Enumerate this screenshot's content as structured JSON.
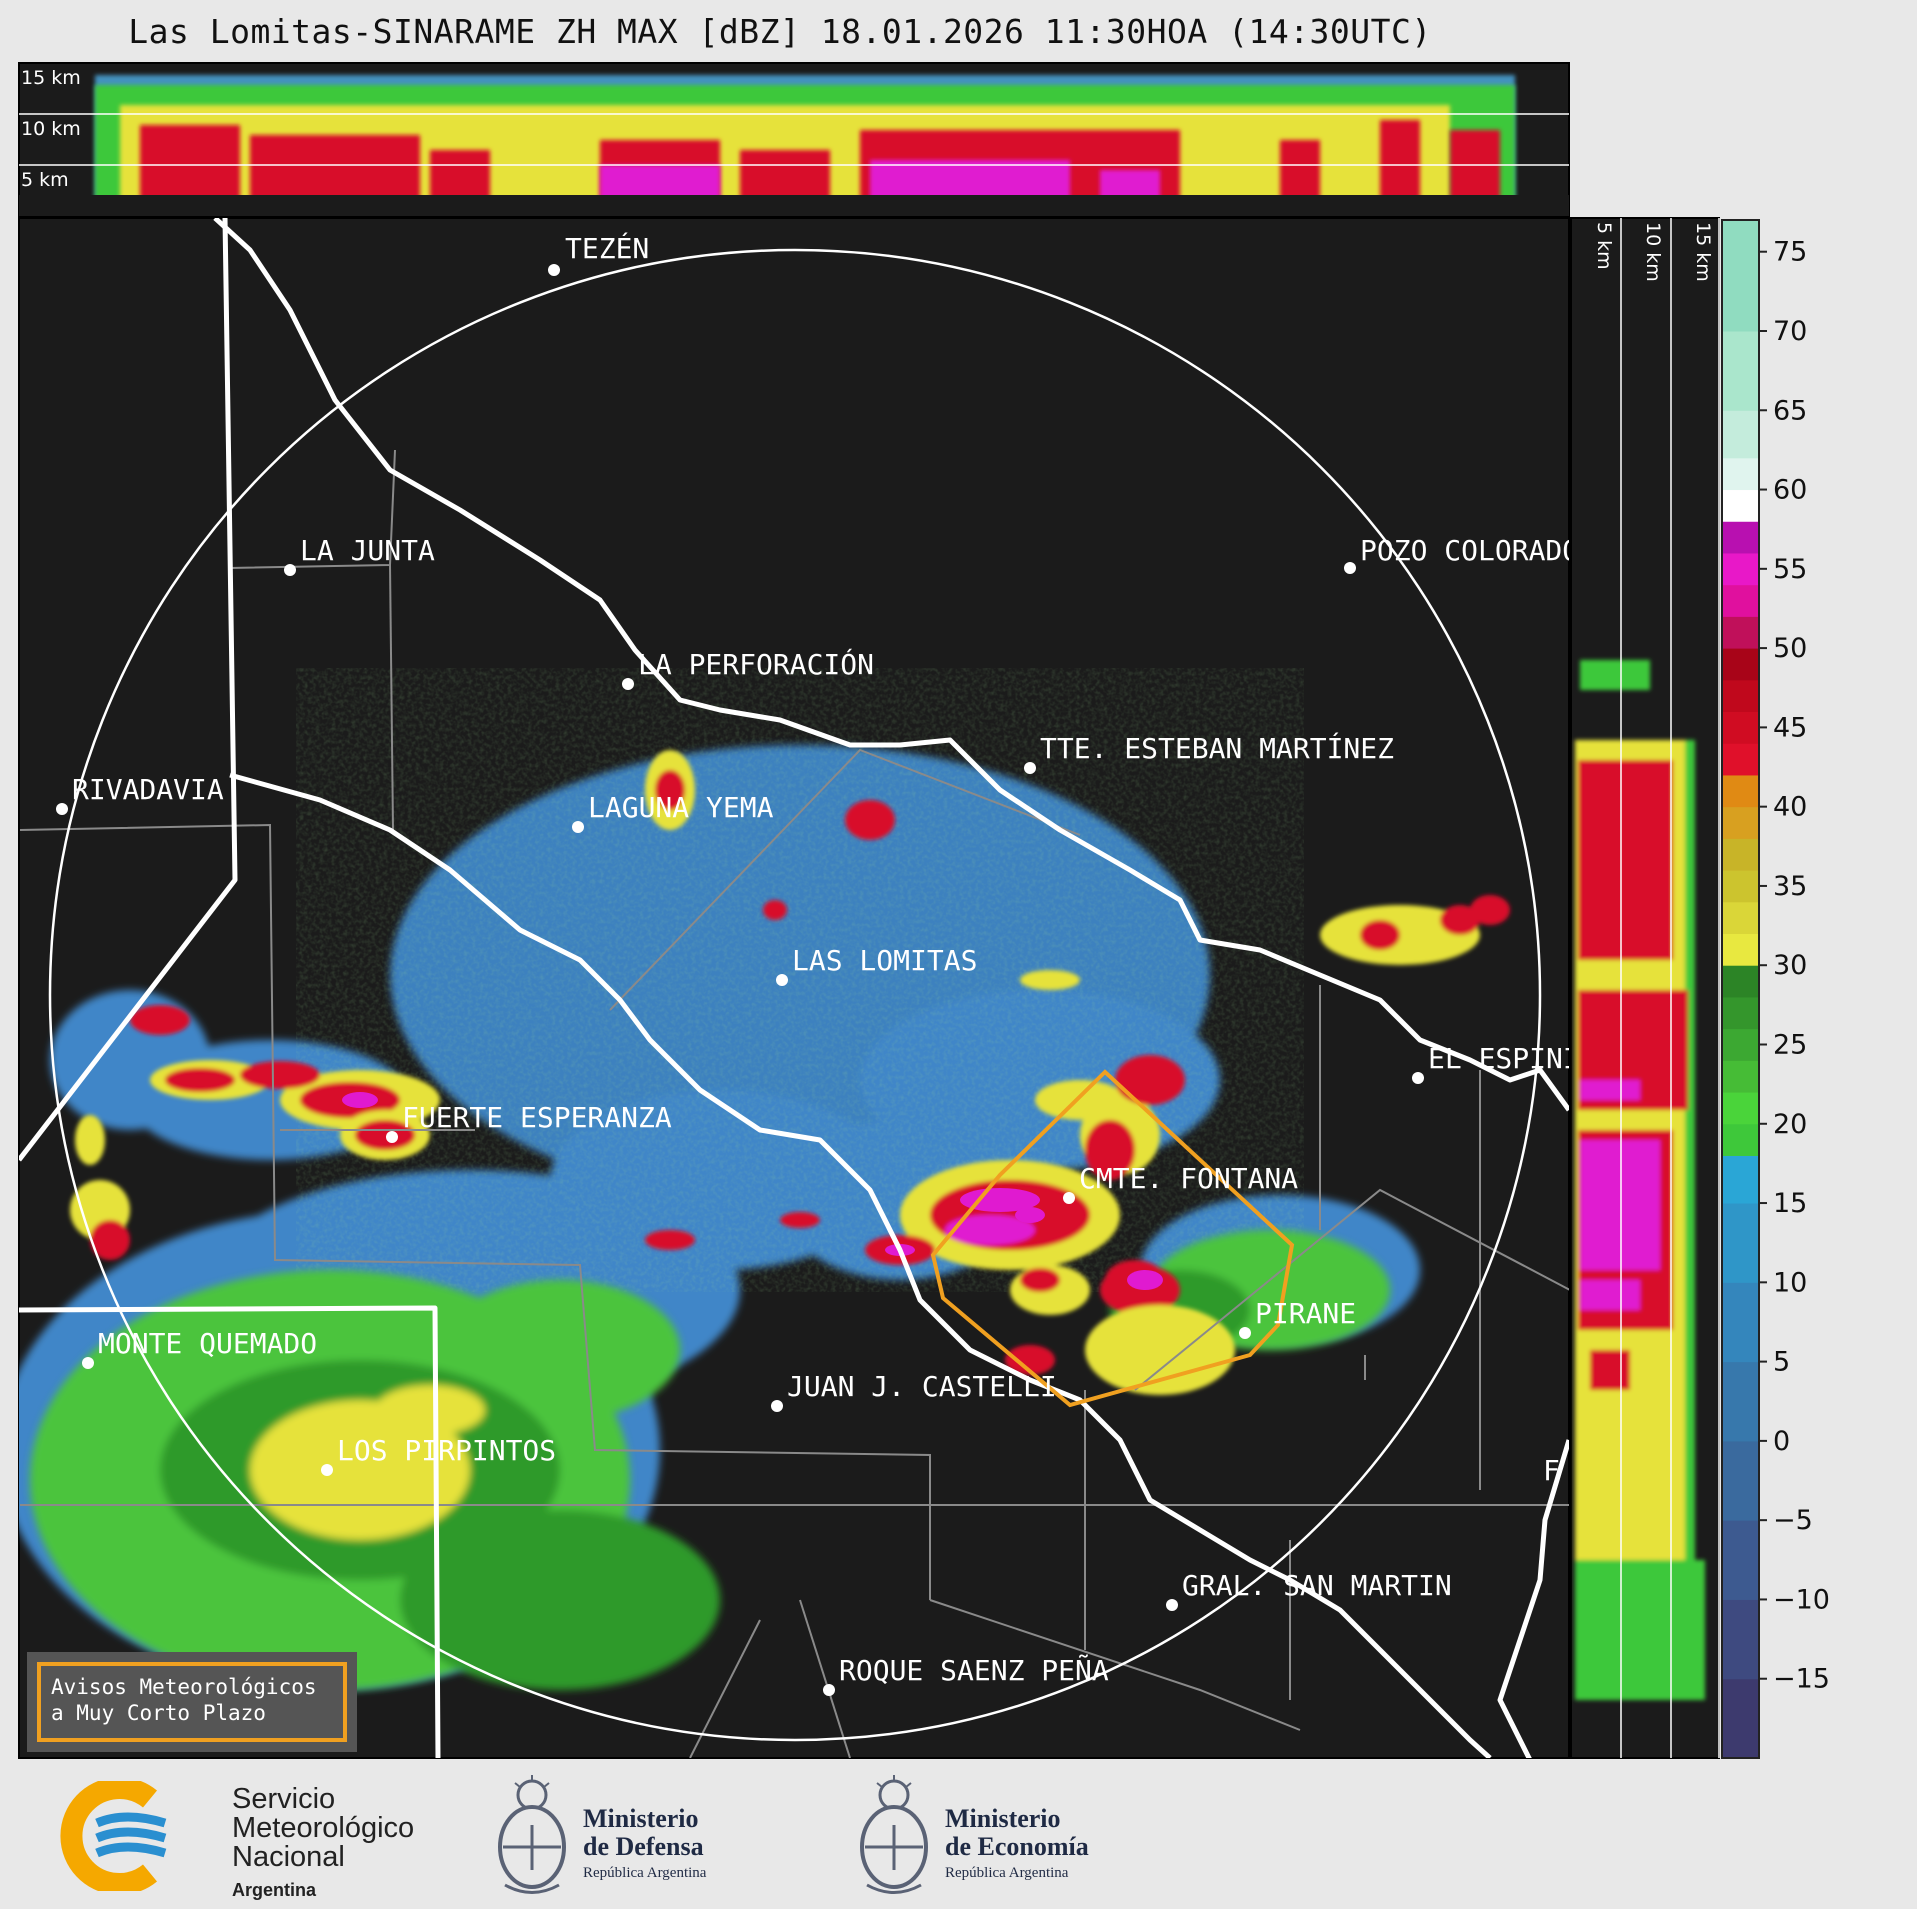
{
  "title": "Las Lomitas-SINARAME ZH MAX [dBZ] 18.01.2026 11:30HOA (14:30UTC)",
  "height_labels": [
    "15 km",
    "10 km",
    "5 km"
  ],
  "colorbar": {
    "ticks": [
      "75",
      "70",
      "65",
      "60",
      "55",
      "50",
      "45",
      "40",
      "35",
      "30",
      "25",
      "20",
      "15",
      "10",
      "5",
      "0",
      "−5",
      "−10",
      "−15"
    ]
  },
  "places": [
    {
      "name": "TEZÉN"
    },
    {
      "name": "LA JUNTA"
    },
    {
      "name": "POZO COLORADO"
    },
    {
      "name": "LA PERFORACIÓN"
    },
    {
      "name": "TTE. ESTEBAN MARTÍNEZ"
    },
    {
      "name": "RIVADAVIA"
    },
    {
      "name": "LAGUNA YEMA"
    },
    {
      "name": "LAS LOMITAS"
    },
    {
      "name": "EL ESPINILLO"
    },
    {
      "name": "FUERTE ESPERANZA"
    },
    {
      "name": "CMTE. FONTANA"
    },
    {
      "name": "PIRANE"
    },
    {
      "name": "MONTE QUEMADO"
    },
    {
      "name": "JUAN J. CASTELLI"
    },
    {
      "name": "LOS PIRPINTOS"
    },
    {
      "name": "GRAL. SAN MARTIN"
    },
    {
      "name": "ROQUE SAENZ PEÑA"
    },
    {
      "name": "F"
    }
  ],
  "warning_box": {
    "line1": "Avisos Meteorológicos",
    "line2": "a Muy Corto Plazo"
  },
  "logos": {
    "smn": {
      "line1": "Servicio",
      "line2": "Meteorológico",
      "line3": "Nacional",
      "country": "Argentina"
    },
    "defensa": {
      "line1": "Ministerio",
      "line2": "de Defensa",
      "sub": "República Argentina"
    },
    "economia": {
      "line1": "Ministerio",
      "line2": "de Economía",
      "sub": "República Argentina"
    }
  },
  "colors": {
    "map_background": "#1b1b1b",
    "warning_polygon": "#f0a020",
    "smn_blue": "#2a8fd0",
    "smn_orange": "#f5a800"
  }
}
